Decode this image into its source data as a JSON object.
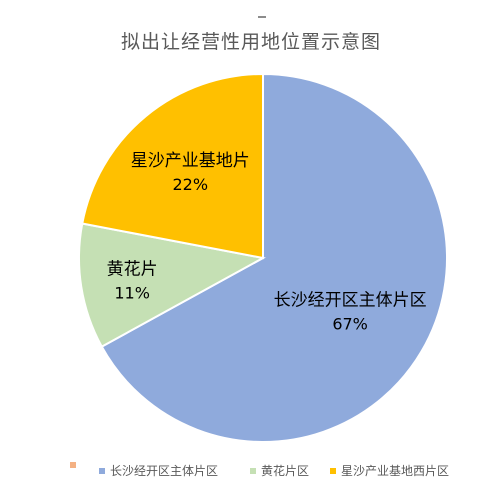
{
  "chart_data": {
    "type": "pie",
    "title": "拟出让经营性用地位置示意图",
    "slices": [
      {
        "name": "长沙经开区主体片区",
        "label": "长沙经开区主体片区",
        "value": 67,
        "value_label": "67%",
        "color": "#8faadc"
      },
      {
        "name": "黄花片区",
        "label": "黄花片",
        "value": 11,
        "value_label": "11%",
        "color": "#c5e0b4"
      },
      {
        "name": "星沙产业基地西片区",
        "label": "星沙产业基地片",
        "value": 22,
        "value_label": "22%",
        "color": "#ffc000"
      }
    ],
    "legend": {
      "placement": "bottom",
      "entries": [
        {
          "name": "",
          "color": "#f4b183"
        },
        {
          "name": "长沙经开区主体片区",
          "color": "#8faadc"
        },
        {
          "name": "黄花片区",
          "color": "#c5e0b4"
        },
        {
          "name": "星沙产业基地西片区",
          "color": "#ffc000"
        }
      ]
    }
  }
}
